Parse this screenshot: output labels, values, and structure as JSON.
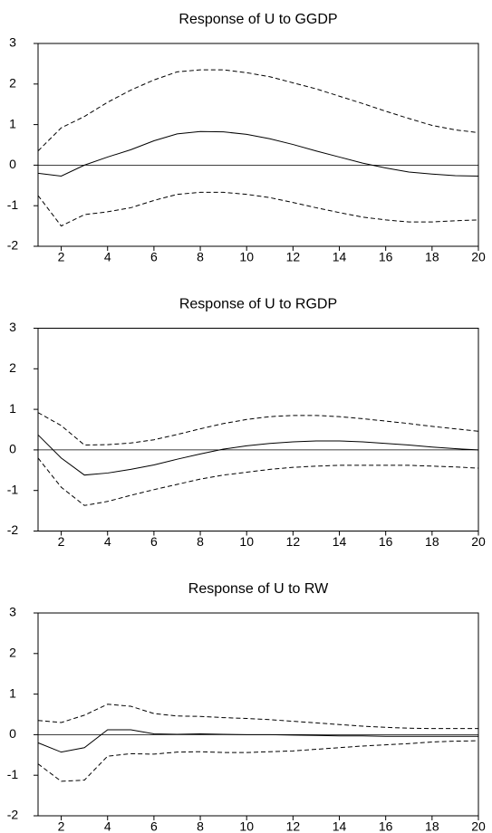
{
  "chart_data": [
    {
      "type": "line",
      "title": "Response of U to GGDP",
      "x": [
        1,
        2,
        3,
        4,
        5,
        6,
        7,
        8,
        9,
        10,
        11,
        12,
        13,
        14,
        15,
        16,
        17,
        18,
        19,
        20
      ],
      "xlim": [
        1,
        20
      ],
      "xticks": [
        2,
        4,
        6,
        8,
        10,
        12,
        14,
        16,
        18,
        20
      ],
      "ylim": [
        -2,
        3
      ],
      "yticks": [
        -2,
        -1,
        0,
        1,
        2,
        3
      ],
      "series": [
        {
          "color": "#000000",
          "style": "solid",
          "values": [
            -0.2,
            -0.27,
            0.0,
            0.2,
            0.38,
            0.6,
            0.77,
            0.83,
            0.82,
            0.76,
            0.65,
            0.51,
            0.35,
            0.2,
            0.05,
            -0.07,
            -0.17,
            -0.22,
            -0.26,
            -0.27
          ]
        },
        {
          "color": "#000000",
          "style": "dashed",
          "values": [
            0.35,
            0.92,
            1.2,
            1.55,
            1.85,
            2.1,
            2.3,
            2.35,
            2.35,
            2.28,
            2.18,
            2.03,
            1.88,
            1.7,
            1.52,
            1.33,
            1.15,
            0.98,
            0.87,
            0.8
          ]
        },
        {
          "color": "#000000",
          "style": "dashed",
          "values": [
            -0.75,
            -1.5,
            -1.22,
            -1.15,
            -1.05,
            -0.87,
            -0.72,
            -0.67,
            -0.67,
            -0.72,
            -0.8,
            -0.92,
            -1.05,
            -1.17,
            -1.28,
            -1.35,
            -1.4,
            -1.4,
            -1.37,
            -1.35
          ]
        }
      ]
    },
    {
      "type": "line",
      "title": "Response of U to RGDP",
      "x": [
        1,
        2,
        3,
        4,
        5,
        6,
        7,
        8,
        9,
        10,
        11,
        12,
        13,
        14,
        15,
        16,
        17,
        18,
        19,
        20
      ],
      "xlim": [
        1,
        20
      ],
      "xticks": [
        2,
        4,
        6,
        8,
        10,
        12,
        14,
        16,
        18,
        20
      ],
      "ylim": [
        -2,
        3
      ],
      "yticks": [
        -2,
        -1,
        0,
        1,
        2,
        3
      ],
      "series": [
        {
          "color": "#000000",
          "style": "solid",
          "values": [
            0.37,
            -0.2,
            -0.62,
            -0.57,
            -0.48,
            -0.37,
            -0.23,
            -0.1,
            0.02,
            0.1,
            0.16,
            0.2,
            0.22,
            0.22,
            0.2,
            0.16,
            0.12,
            0.07,
            0.03,
            0.0
          ]
        },
        {
          "color": "#000000",
          "style": "dashed",
          "values": [
            0.92,
            0.6,
            0.12,
            0.13,
            0.17,
            0.25,
            0.38,
            0.52,
            0.65,
            0.75,
            0.82,
            0.85,
            0.85,
            0.82,
            0.77,
            0.71,
            0.65,
            0.58,
            0.52,
            0.46
          ]
        },
        {
          "color": "#000000",
          "style": "dashed",
          "values": [
            -0.2,
            -0.92,
            -1.37,
            -1.27,
            -1.12,
            -0.98,
            -0.85,
            -0.72,
            -0.62,
            -0.55,
            -0.48,
            -0.43,
            -0.4,
            -0.38,
            -0.38,
            -0.38,
            -0.38,
            -0.4,
            -0.42,
            -0.45
          ]
        }
      ]
    },
    {
      "type": "line",
      "title": "Response of U to RW",
      "x": [
        1,
        2,
        3,
        4,
        5,
        6,
        7,
        8,
        9,
        10,
        11,
        12,
        13,
        14,
        15,
        16,
        17,
        18,
        19,
        20
      ],
      "xlim": [
        1,
        20
      ],
      "xticks": [
        2,
        4,
        6,
        8,
        10,
        12,
        14,
        16,
        18,
        20
      ],
      "ylim": [
        -2,
        3
      ],
      "yticks": [
        -2,
        -1,
        0,
        1,
        2,
        3
      ],
      "series": [
        {
          "color": "#000000",
          "style": "solid",
          "values": [
            -0.2,
            -0.43,
            -0.32,
            0.12,
            0.12,
            0.02,
            0.01,
            0.02,
            0.01,
            0.0,
            0.0,
            -0.01,
            -0.02,
            -0.03,
            -0.03,
            -0.04,
            -0.04,
            -0.04,
            -0.04,
            -0.04
          ]
        },
        {
          "color": "#000000",
          "style": "dashed",
          "values": [
            0.35,
            0.3,
            0.48,
            0.75,
            0.7,
            0.52,
            0.46,
            0.45,
            0.42,
            0.4,
            0.37,
            0.33,
            0.29,
            0.25,
            0.21,
            0.18,
            0.16,
            0.15,
            0.15,
            0.15
          ]
        },
        {
          "color": "#000000",
          "style": "dashed",
          "values": [
            -0.72,
            -1.15,
            -1.12,
            -0.53,
            -0.47,
            -0.48,
            -0.43,
            -0.42,
            -0.44,
            -0.44,
            -0.42,
            -0.4,
            -0.36,
            -0.32,
            -0.28,
            -0.25,
            -0.22,
            -0.18,
            -0.16,
            -0.15
          ]
        }
      ]
    }
  ]
}
